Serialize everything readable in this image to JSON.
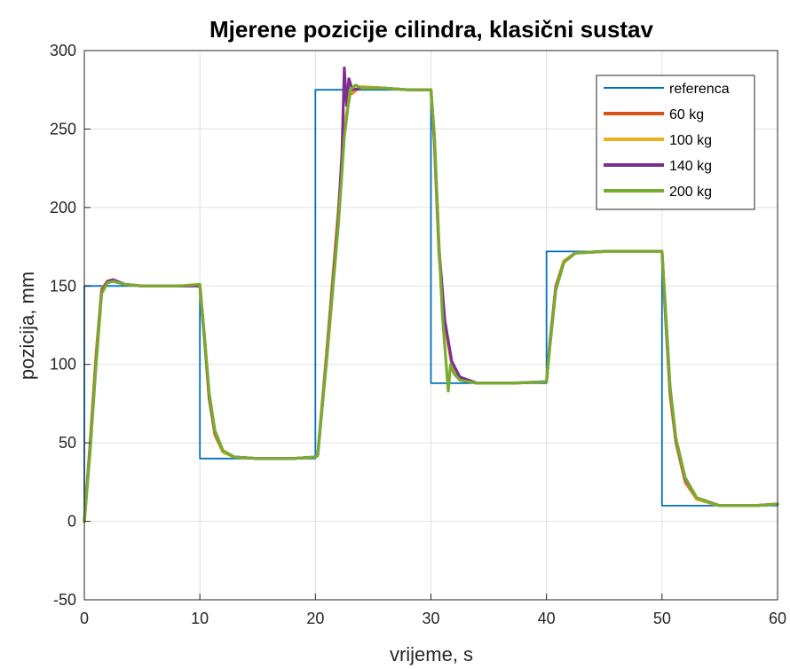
{
  "chart_data": {
    "type": "line",
    "title": "Mjerene pozicije cilindra, klasični sustav",
    "xlabel": "vrijeme, s",
    "ylabel": "pozicija, mm",
    "xlim": [
      0,
      60
    ],
    "ylim": [
      -50,
      300
    ],
    "xticks": [
      "0",
      "10",
      "20",
      "30",
      "40",
      "50",
      "60"
    ],
    "yticks": [
      "-50",
      "0",
      "50",
      "100",
      "150",
      "200",
      "250",
      "300"
    ],
    "grid": true,
    "legend_position": "top-right",
    "series": [
      {
        "name": "referenca",
        "color": "#0072BD",
        "x": [
          0,
          0,
          10,
          10,
          20,
          20,
          30,
          30,
          40,
          40,
          50,
          50,
          60
        ],
        "y": [
          0,
          150,
          150,
          40,
          40,
          275,
          275,
          88,
          88,
          172,
          172,
          10,
          10
        ]
      },
      {
        "name": "60 kg",
        "color": "#D95319",
        "x": [
          0,
          0.5,
          1.0,
          1.5,
          2.0,
          2.5,
          3.5,
          5,
          8,
          10,
          10.4,
          10.8,
          11.3,
          12,
          13,
          15,
          18,
          20,
          20.2,
          21,
          22,
          22.5,
          23,
          24,
          26,
          28,
          30,
          30.3,
          30.7,
          31.2,
          31.8,
          32.5,
          34,
          37,
          40,
          40.3,
          40.8,
          41.5,
          42.5,
          45,
          48,
          50,
          50.3,
          50.7,
          51.2,
          52,
          53,
          55,
          58,
          60
        ],
        "y": [
          0,
          50,
          105,
          148,
          153,
          153,
          151,
          150,
          150,
          150,
          115,
          78,
          55,
          44,
          41,
          40,
          40,
          41,
          42,
          110,
          200,
          252,
          272,
          277,
          276,
          275,
          275,
          240,
          170,
          125,
          100,
          91,
          88,
          88,
          89,
          115,
          150,
          166,
          171,
          172,
          172,
          172,
          130,
          80,
          50,
          25,
          14,
          10,
          10,
          11
        ]
      },
      {
        "name": "100 kg",
        "color": "#EDB120",
        "x": [
          0,
          0.5,
          1.0,
          1.5,
          2.0,
          2.5,
          3.5,
          5,
          8,
          10,
          10.4,
          10.8,
          11.3,
          12,
          13,
          15,
          18,
          20,
          20.2,
          21,
          22,
          22.5,
          23,
          24,
          26,
          28,
          30,
          30.3,
          30.7,
          31.2,
          31.8,
          32.5,
          34,
          37,
          40,
          40.3,
          40.8,
          41.5,
          42.5,
          45,
          48,
          50,
          50.3,
          50.7,
          51.2,
          52,
          53,
          55,
          58,
          60
        ],
        "y": [
          0,
          48,
          103,
          147,
          153,
          153,
          151,
          150,
          150,
          150,
          116,
          79,
          56,
          44,
          41,
          40,
          40,
          41,
          42,
          108,
          198,
          251,
          273,
          277,
          276,
          275,
          275,
          242,
          172,
          126,
          101,
          91,
          88,
          88,
          89,
          114,
          149,
          166,
          171,
          172,
          172,
          172,
          132,
          82,
          51,
          26,
          14,
          10,
          10,
          11
        ]
      },
      {
        "name": "140 kg",
        "color": "#7E2F8E",
        "x": [
          0,
          0.5,
          1.0,
          1.5,
          2.0,
          2.5,
          3.5,
          5,
          8,
          10,
          10.4,
          10.8,
          11.3,
          12,
          13,
          15,
          18,
          20,
          20.2,
          21,
          22,
          22.3,
          22.5,
          22.7,
          22.9,
          23.2,
          24,
          26,
          28,
          30,
          30.3,
          30.7,
          31.2,
          31.8,
          32.5,
          34,
          37,
          40,
          40.3,
          40.8,
          41.5,
          42.5,
          45,
          48,
          50,
          50.3,
          50.7,
          51.2,
          52,
          53,
          55,
          58,
          60
        ],
        "y": [
          0,
          46,
          100,
          146,
          153,
          154,
          151,
          150,
          150,
          150,
          117,
          80,
          57,
          45,
          41,
          40,
          40,
          41,
          42,
          106,
          195,
          235,
          289,
          265,
          282,
          275,
          276,
          276,
          275,
          275,
          244,
          174,
          128,
          102,
          92,
          88,
          88,
          89,
          113,
          148,
          165,
          171,
          172,
          172,
          172,
          134,
          84,
          52,
          27,
          15,
          10,
          10,
          11
        ]
      },
      {
        "name": "200 kg",
        "color": "#77AC30",
        "x": [
          0,
          0.5,
          1.0,
          1.5,
          2.0,
          2.5,
          3.5,
          5,
          8,
          10,
          10.4,
          10.8,
          11.3,
          12,
          13,
          15,
          18,
          20,
          20.2,
          21,
          22,
          22.5,
          23,
          23.5,
          24,
          26,
          28,
          30,
          30.3,
          30.7,
          31.0,
          31.3,
          31.5,
          31.7,
          32.0,
          32.5,
          34,
          37,
          40,
          40.3,
          40.8,
          41.5,
          42.5,
          45,
          48,
          50,
          50.3,
          50.7,
          51.2,
          52,
          53,
          55,
          58,
          60
        ],
        "y": [
          0,
          44,
          98,
          145,
          152,
          153,
          151,
          150,
          150,
          151,
          118,
          82,
          58,
          45,
          41,
          40,
          40,
          41,
          42,
          104,
          190,
          245,
          275,
          278,
          276,
          276,
          275,
          275,
          246,
          176,
          130,
          102,
          83,
          100,
          94,
          90,
          88,
          88,
          89,
          112,
          147,
          165,
          171,
          172,
          172,
          172,
          136,
          86,
          53,
          28,
          15,
          10,
          10,
          11
        ]
      }
    ]
  }
}
